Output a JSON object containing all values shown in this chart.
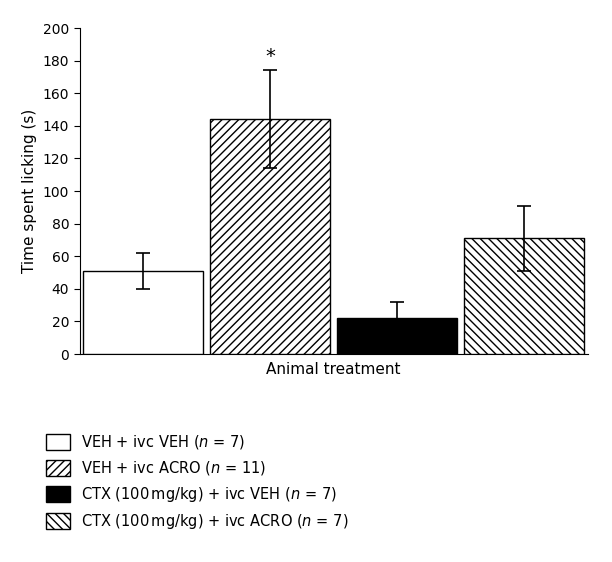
{
  "bars": [
    {
      "value": 51,
      "error": 11,
      "color": "white",
      "edgecolor": "black",
      "hatch": ""
    },
    {
      "value": 144,
      "error": 30,
      "color": "white",
      "edgecolor": "black",
      "hatch": "////"
    },
    {
      "value": 22,
      "error": 10,
      "color": "black",
      "edgecolor": "black",
      "hatch": ""
    },
    {
      "value": 71,
      "error": 20,
      "color": "white",
      "edgecolor": "black",
      "hatch": "\\\\\\\\"
    }
  ],
  "ylabel": "Time spent licking (s)",
  "xlabel": "Animal treatment",
  "ylim": [
    0,
    200
  ],
  "yticks": [
    0,
    20,
    40,
    60,
    80,
    100,
    120,
    140,
    160,
    180,
    200
  ],
  "significance_bar_idx": 1,
  "significance_symbol": "*",
  "background_color": "#ffffff",
  "legend_hatches": [
    "",
    "////",
    "",
    "\\\\\\\\"
  ],
  "legend_facecolors": [
    "white",
    "white",
    "black",
    "white"
  ]
}
